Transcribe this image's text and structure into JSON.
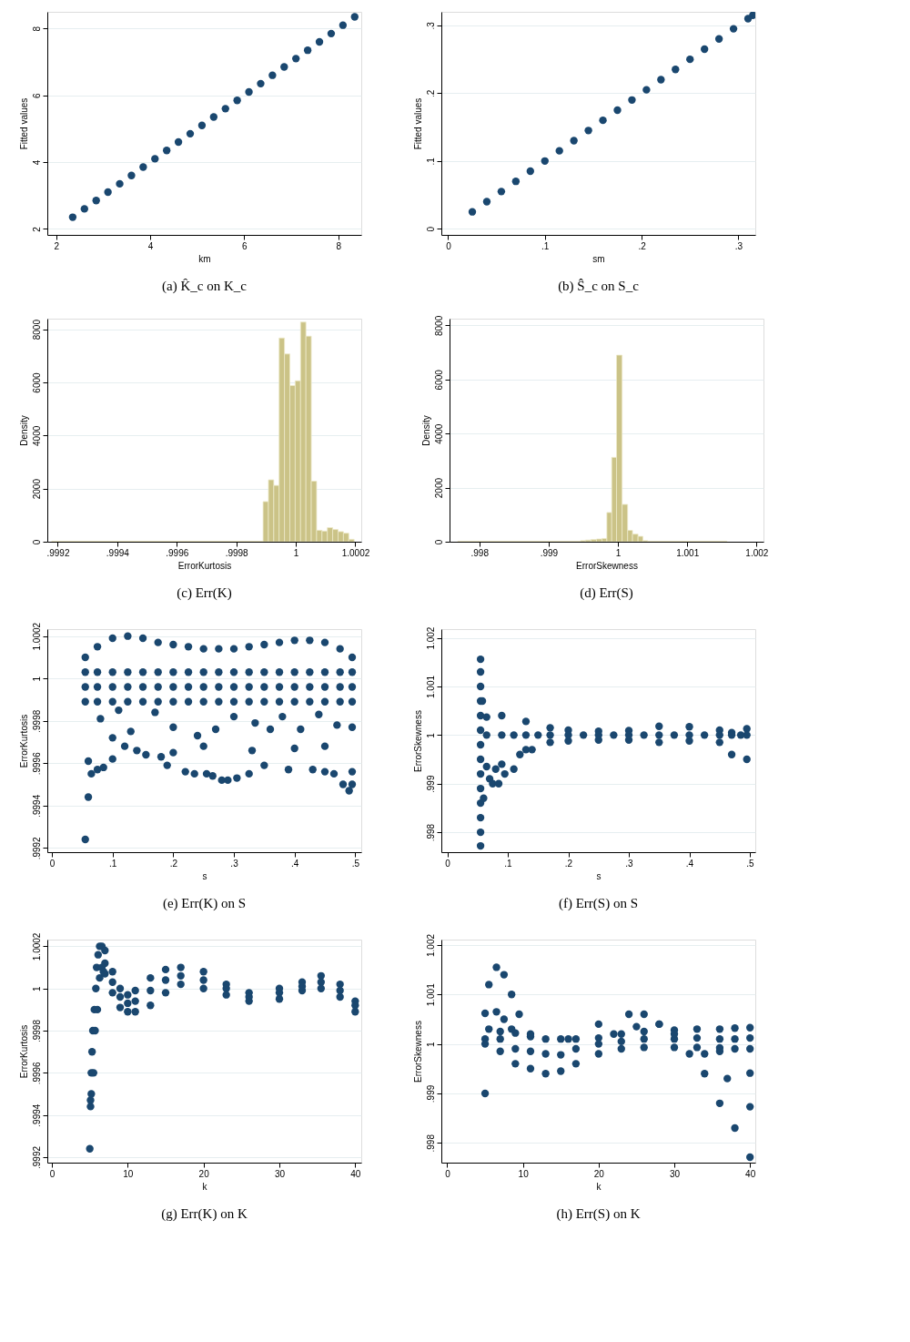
{
  "chart_data": [
    {
      "type": "scatter",
      "xlabel": "km",
      "ylabel": "Fitted values",
      "annotations": [
        "(a) K̂_c on K_c"
      ],
      "grid": "y",
      "marker": "circle",
      "xlim": [
        1.81,
        8.49
      ],
      "ylim": [
        1.82,
        8.5
      ],
      "xticks": [
        2,
        4,
        6,
        8
      ],
      "yticks": [
        2,
        4,
        6,
        8
      ],
      "series": [
        {
          "color": "#1a476f",
          "x": [
            2.35,
            2.6,
            2.85,
            3.1,
            3.35,
            3.6,
            3.85,
            4.1,
            4.35,
            4.6,
            4.85,
            5.1,
            5.35,
            5.6,
            5.85,
            6.1,
            6.35,
            6.6,
            6.85,
            7.1,
            7.35,
            7.6,
            7.85,
            8.1,
            8.35
          ],
          "values": [
            2.35,
            2.6,
            2.85,
            3.1,
            3.35,
            3.6,
            3.85,
            4.1,
            4.35,
            4.6,
            4.85,
            5.1,
            5.35,
            5.6,
            5.85,
            6.1,
            6.35,
            6.6,
            6.85,
            7.1,
            7.35,
            7.6,
            7.85,
            8.1,
            8.35
          ]
        }
      ]
    },
    {
      "type": "scatter",
      "xlabel": "sm",
      "ylabel": "Fitted values",
      "annotations": [
        "(b) Ŝ_c on S_c"
      ],
      "grid": "y",
      "marker": "circle",
      "xlim": [
        -0.007,
        0.3175
      ],
      "ylim": [
        -0.009,
        0.32
      ],
      "xticks": [
        0,
        {
          "value": 0.1,
          "label": ".1"
        },
        {
          "value": 0.2,
          "label": ".2"
        },
        {
          "value": 0.3,
          "label": ".3"
        }
      ],
      "yticks": [
        0,
        {
          "value": 0.1,
          "label": ".1"
        },
        {
          "value": 0.2,
          "label": ".2"
        },
        {
          "value": 0.3,
          "label": ".3"
        }
      ],
      "series": [
        {
          "color": "#1a476f",
          "x": [
            0.025,
            0.04,
            0.055,
            0.07,
            0.085,
            0.1,
            0.115,
            0.13,
            0.145,
            0.16,
            0.175,
            0.19,
            0.205,
            0.22,
            0.235,
            0.25,
            0.265,
            0.28,
            0.295,
            0.31,
            0.315
          ],
          "values": [
            0.025,
            0.04,
            0.055,
            0.07,
            0.085,
            0.1,
            0.115,
            0.13,
            0.145,
            0.16,
            0.175,
            0.19,
            0.205,
            0.22,
            0.235,
            0.25,
            0.265,
            0.28,
            0.295,
            0.31,
            0.315
          ]
        }
      ]
    },
    {
      "type": "histogram",
      "xlabel": "ErrorKurtosis",
      "ylabel": "Density",
      "annotations": [
        "(c) Err(K)"
      ],
      "grid": "y",
      "color": "#cbc387",
      "xlim": [
        0.999165,
        1.00022
      ],
      "ylim": [
        0,
        8400
      ],
      "xticks": [
        {
          "value": 0.9992,
          "label": ".9992"
        },
        {
          "value": 0.9994,
          "label": ".9994"
        },
        {
          "value": 0.9996,
          "label": ".9996"
        },
        {
          "value": 0.9998,
          "label": ".9998"
        },
        1,
        1.0002
      ],
      "yticks": [
        0,
        2000,
        4000,
        6000,
        8000
      ],
      "bins": [
        0.99918,
        0.99989,
        0.999908,
        0.999926,
        0.999944,
        0.999962,
        0.99998,
        0.999998,
        1.000016,
        1.000034,
        1.000052,
        1.00007,
        1.000088,
        1.000106,
        1.000124,
        1.000142,
        1.00016,
        1.000178,
        1.000196
      ],
      "values": [
        20,
        1510,
        2330,
        2120,
        7670,
        7070,
        5880,
        6060,
        8270,
        7740,
        2280,
        430,
        400,
        530,
        460,
        380,
        320,
        90
      ]
    },
    {
      "type": "histogram",
      "xlabel": "ErrorSkewness",
      "ylabel": "Density",
      "annotations": [
        "(d) Err(S)"
      ],
      "grid": "y",
      "color": "#cbc387",
      "xlim": [
        0.99757,
        1.0021
      ],
      "ylim": [
        0,
        8250
      ],
      "xticks": [
        {
          "value": 0.998,
          "label": ".998"
        },
        {
          "value": 0.999,
          "label": ".999"
        },
        1,
        1.001,
        1.002
      ],
      "yticks": [
        0,
        2000,
        4000,
        6000,
        8000
      ],
      "bins": [
        0.99769,
        0.99946,
        0.99953,
        0.99961,
        0.99969,
        0.99977,
        0.99984,
        0.99991,
        0.99998,
        1.00006,
        1.00014,
        1.00021,
        1.00029,
        1.00036,
        1.00043,
        1.00157
      ],
      "values": [
        20,
        40,
        60,
        80,
        100,
        120,
        1080,
        3120,
        6900,
        1380,
        420,
        280,
        200,
        40,
        20
      ]
    },
    {
      "type": "scatter",
      "xlabel": "s",
      "ylabel": "ErrorKurtosis",
      "annotations": [
        "(e) Err(K) on S"
      ],
      "grid": "y",
      "marker": "circle",
      "xlim": [
        -0.0076,
        0.51
      ],
      "ylim": [
        0.99918,
        1.000233
      ],
      "xticks": [
        0,
        {
          "value": 0.1,
          "label": ".1"
        },
        {
          "value": 0.2,
          "label": ".2"
        },
        {
          "value": 0.3,
          "label": ".3"
        },
        {
          "value": 0.4,
          "label": ".4"
        },
        {
          "value": 0.5,
          "label": ".5"
        }
      ],
      "yticks": [
        {
          "value": 0.9992,
          "label": ".9992"
        },
        {
          "value": 0.9994,
          "label": ".9994"
        },
        {
          "value": 0.9996,
          "label": ".9996"
        },
        {
          "value": 0.9998,
          "label": ".9998"
        },
        1,
        1.0002
      ],
      "series": [
        {
          "color": "#1a476f",
          "x": [
            0.055,
            0.075,
            0.1,
            0.125,
            0.15,
            0.175,
            0.2,
            0.225,
            0.25,
            0.275,
            0.3,
            0.325,
            0.35,
            0.375,
            0.4,
            0.425,
            0.45,
            0.475,
            0.495,
            0.055,
            0.075,
            0.1,
            0.125,
            0.15,
            0.175,
            0.2,
            0.225,
            0.25,
            0.275,
            0.3,
            0.325,
            0.35,
            0.375,
            0.4,
            0.425,
            0.45,
            0.475,
            0.495,
            0.055,
            0.075,
            0.1,
            0.125,
            0.15,
            0.175,
            0.2,
            0.225,
            0.25,
            0.275,
            0.3,
            0.325,
            0.35,
            0.375,
            0.4,
            0.425,
            0.45,
            0.475,
            0.495,
            0.055,
            0.075,
            0.1,
            0.125,
            0.15,
            0.175,
            0.2,
            0.225,
            0.25,
            0.275,
            0.3,
            0.325,
            0.35,
            0.375,
            0.4,
            0.425,
            0.45,
            0.475,
            0.495,
            0.055,
            0.06,
            0.065,
            0.06,
            0.075,
            0.085,
            0.1,
            0.1,
            0.12,
            0.14,
            0.155,
            0.18,
            0.19,
            0.22,
            0.235,
            0.255,
            0.265,
            0.28,
            0.29,
            0.305,
            0.325,
            0.35,
            0.39,
            0.43,
            0.45,
            0.465,
            0.48,
            0.49,
            0.495,
            0.495,
            0.08,
            0.13,
            0.17,
            0.2,
            0.24,
            0.27,
            0.3,
            0.335,
            0.36,
            0.38,
            0.41,
            0.44,
            0.47,
            0.495,
            0.2,
            0.33,
            0.4,
            0.45,
            0.25,
            0.11
          ],
          "values": [
            0.99989,
            0.99989,
            0.99989,
            0.99989,
            0.99989,
            0.99989,
            0.99989,
            0.99989,
            0.99989,
            0.99989,
            0.99989,
            0.99989,
            0.99989,
            0.99989,
            0.99989,
            0.99989,
            0.99989,
            0.99989,
            0.99989,
            0.99996,
            0.99996,
            0.99996,
            0.99996,
            0.99996,
            0.99996,
            0.99996,
            0.99996,
            0.99996,
            0.99996,
            0.99996,
            0.99996,
            0.99996,
            0.99996,
            0.99996,
            0.99996,
            0.99996,
            0.99996,
            0.99996,
            1.00003,
            1.00003,
            1.00003,
            1.00003,
            1.00003,
            1.00003,
            1.00003,
            1.00003,
            1.00003,
            1.00003,
            1.00003,
            1.00003,
            1.00003,
            1.00003,
            1.00003,
            1.00003,
            1.00003,
            1.00003,
            1.00003,
            1.0001,
            1.00015,
            1.00019,
            1.0002,
            1.00019,
            1.00017,
            1.00016,
            1.00015,
            1.00014,
            1.00014,
            1.00014,
            1.00015,
            1.00016,
            1.00017,
            1.00018,
            1.00018,
            1.00017,
            1.00014,
            1.0001,
            0.99924,
            0.99944,
            0.99955,
            0.99961,
            0.99957,
            0.99958,
            0.99962,
            0.99972,
            0.99968,
            0.99966,
            0.99964,
            0.99963,
            0.99959,
            0.99956,
            0.99955,
            0.99955,
            0.99954,
            0.99952,
            0.99952,
            0.99953,
            0.99955,
            0.99959,
            0.99957,
            0.99957,
            0.99956,
            0.99955,
            0.9995,
            0.99947,
            0.9995,
            0.99956,
            0.99981,
            0.99975,
            0.99984,
            0.99977,
            0.99973,
            0.99976,
            0.99982,
            0.99979,
            0.99976,
            0.99982,
            0.99976,
            0.99983,
            0.99978,
            0.99977,
            0.99965,
            0.99966,
            0.99967,
            0.99968,
            0.99968,
            0.99985
          ]
        }
      ]
    },
    {
      "type": "scatter",
      "xlabel": "s",
      "ylabel": "ErrorSkewness",
      "annotations": [
        "(f) Err(S) on S"
      ],
      "grid": "y",
      "marker": "circle",
      "xlim": [
        -0.0098,
        0.509
      ],
      "ylim": [
        0.99759,
        1.00218
      ],
      "xticks": [
        0,
        {
          "value": 0.1,
          "label": ".1"
        },
        {
          "value": 0.2,
          "label": ".2"
        },
        {
          "value": 0.3,
          "label": ".3"
        },
        {
          "value": 0.4,
          "label": ".4"
        },
        {
          "value": 0.5,
          "label": ".5"
        }
      ],
      "yticks": [
        {
          "value": 0.998,
          "label": ".998"
        },
        {
          "value": 0.999,
          "label": ".999"
        },
        1,
        1.001,
        1.002
      ],
      "series": [
        {
          "color": "#1a476f",
          "x": [
            0.055,
            0.055,
            0.055,
            0.055,
            0.055,
            0.055,
            0.055,
            0.055,
            0.055,
            0.055,
            0.055,
            0.055,
            0.055,
            0.055,
            0.058,
            0.06,
            0.065,
            0.09,
            0.13,
            0.17,
            0.2,
            0.25,
            0.3,
            0.35,
            0.4,
            0.45,
            0.47,
            0.495,
            0.065,
            0.09,
            0.13,
            0.17,
            0.2,
            0.25,
            0.3,
            0.35,
            0.4,
            0.45,
            0.47,
            0.495,
            0.065,
            0.09,
            0.13,
            0.17,
            0.2,
            0.25,
            0.3,
            0.35,
            0.4,
            0.45,
            0.47,
            0.495,
            0.11,
            0.15,
            0.225,
            0.275,
            0.325,
            0.375,
            0.425,
            0.485,
            0.07,
            0.075,
            0.085,
            0.095,
            0.11,
            0.12,
            0.14,
            0.08
          ],
          "values": [
            0.99772,
            0.998,
            0.9983,
            0.9986,
            0.9989,
            0.9992,
            0.9995,
            0.9998,
            1.0001,
            1.0004,
            1.0007,
            1.001,
            1.0013,
            1.00156,
            1.0007,
            0.9987,
            1.00037,
            1.0004,
            1.00028,
            1.00015,
            1.0001,
            1.00008,
            1.00009,
            1.00018,
            1.00017,
            1.0001,
            1.00005,
            1.00013,
            0.99935,
            0.9994,
            0.9997,
            0.99985,
            0.99988,
            0.9999,
            0.9999,
            0.99985,
            0.99988,
            0.99985,
            0.9996,
            0.9995,
            1,
            1,
            1,
            1,
            1,
            1,
            1,
            1,
            1,
            1,
            1,
            1,
            1,
            1,
            1,
            1,
            1,
            1,
            1,
            1,
            0.9991,
            0.999,
            0.999,
            0.9992,
            0.9993,
            0.9996,
            0.9997,
            0.9993
          ]
        }
      ]
    },
    {
      "type": "scatter",
      "xlabel": "k",
      "ylabel": "ErrorKurtosis",
      "annotations": [
        "(g) Err(K) on K"
      ],
      "grid": "y",
      "marker": "circle",
      "xlim": [
        -0.6,
        40.8
      ],
      "ylim": [
        0.999174,
        1.000232
      ],
      "xticks": [
        0,
        10,
        20,
        30,
        40
      ],
      "yticks": [
        {
          "value": 0.9992,
          "label": ".9992"
        },
        {
          "value": 0.9994,
          "label": ".9994"
        },
        {
          "value": 0.9996,
          "label": ".9996"
        },
        {
          "value": 0.9998,
          "label": ".9998"
        },
        1,
        1.0002
      ],
      "series": [
        {
          "color": "#1a476f",
          "x": [
            7,
            8,
            9,
            10,
            11,
            13,
            15,
            17,
            20,
            23,
            26,
            30,
            33,
            35.5,
            38,
            40,
            7,
            8,
            9,
            10,
            11,
            13,
            15,
            17,
            20,
            23,
            26,
            30,
            33,
            35.5,
            38,
            40,
            7,
            8,
            9,
            10,
            11,
            13,
            15,
            17,
            20,
            23,
            26,
            30,
            33,
            35.5,
            38,
            40,
            5,
            5.1,
            5.1,
            5.2,
            5.2,
            5.3,
            5.4,
            5.6,
            5.8,
            5.9,
            6.1,
            6.3,
            6.6,
            5.5,
            5.7,
            6,
            6.3,
            6.6,
            6.8
          ],
          "values": [
            1.00018,
            1.00008,
            1,
            0.99997,
            0.99999,
            1.00005,
            1.00009,
            1.0001,
            1.00008,
            1.00002,
            0.99998,
            1,
            1.00003,
            1.00006,
            1.00002,
            0.99994,
            1.00007,
            0.99998,
            0.99991,
            0.99989,
            0.99989,
            0.99992,
            0.99998,
            1.00002,
            1,
            0.99997,
            0.99994,
            0.99995,
            0.99999,
            1,
            0.99996,
            0.99989,
            1.00012,
            1.00003,
            0.99996,
            0.99993,
            0.99994,
            0.99999,
            1.00004,
            1.00006,
            1.00004,
            1,
            0.99996,
            0.99998,
            1.00001,
            1.00003,
            0.99999,
            0.99992,
            0.99924,
            0.99944,
            0.99947,
            0.9995,
            0.9996,
            0.9997,
            0.9998,
            0.9999,
            1,
            1.0001,
            1.00016,
            1.0002,
            1.0002,
            0.9996,
            0.9998,
            0.9999,
            1.00005,
            1.0001,
            1.00008
          ]
        }
      ]
    },
    {
      "type": "scatter",
      "xlabel": "k",
      "ylabel": "ErrorSkewness",
      "annotations": [
        "(h) Err(S) on K"
      ],
      "grid": "y",
      "marker": "circle",
      "xlim": [
        -0.78,
        40.7
      ],
      "ylim": [
        0.9976,
        1.00211
      ],
      "xticks": [
        0,
        10,
        20,
        30,
        40
      ],
      "yticks": [
        {
          "value": 0.998,
          "label": ".998"
        },
        {
          "value": 0.999,
          "label": ".999"
        },
        1,
        1.001,
        1.002
      ],
      "series": [
        {
          "color": "#1a476f",
          "x": [
            5,
            7,
            9,
            11,
            13,
            15,
            17,
            20,
            23,
            26,
            30,
            33,
            36,
            38,
            40,
            5,
            7,
            9,
            11,
            13,
            15,
            17,
            20,
            23,
            26,
            30,
            33,
            36,
            38,
            40,
            5,
            7,
            9,
            11,
            13,
            15,
            17,
            20,
            23,
            26,
            30,
            33,
            36,
            38,
            40,
            5.5,
            6.5,
            7.5,
            8.5,
            9.5,
            11,
            5.5,
            6.5,
            7.5,
            8.5,
            16,
            20,
            24,
            26,
            28,
            30,
            22,
            25,
            28,
            32,
            34,
            36,
            38,
            40,
            34,
            37,
            40,
            36,
            40,
            5
          ],
          "values": [
            1.0001,
            1.00025,
            1.00022,
            1.00015,
            1.0001,
            1.0001,
            1.0001,
            1.00012,
            1.0002,
            1.00025,
            1.00028,
            1.0003,
            1.0003,
            1.00032,
            1.00033,
            0.999,
            0.99985,
            0.9996,
            0.9995,
            0.9994,
            0.99945,
            0.9996,
            0.9998,
            0.9999,
            0.99993,
            0.99993,
            0.99993,
            0.99992,
            0.9999,
            0.9999,
            1,
            1.0001,
            0.9999,
            0.99985,
            0.9998,
            0.99978,
            0.9999,
            1,
            1.00005,
            1.0001,
            1.0001,
            1.00012,
            1.0001,
            1.0001,
            1.00012,
            1.0012,
            1.00155,
            1.0014,
            1.001,
            1.0006,
            1.0002,
            1.0003,
            1.00065,
            1.0005,
            1.0003,
            1.0001,
            1.0004,
            1.0006,
            1.0006,
            1.0004,
            1.0002,
            1.0002,
            1.00035,
            1.0004,
            0.9998,
            0.9994,
            0.9988,
            0.9983,
            0.99771,
            0.9998,
            0.9993,
            0.99873,
            0.99985,
            0.99941,
            1.00062
          ]
        }
      ]
    }
  ]
}
